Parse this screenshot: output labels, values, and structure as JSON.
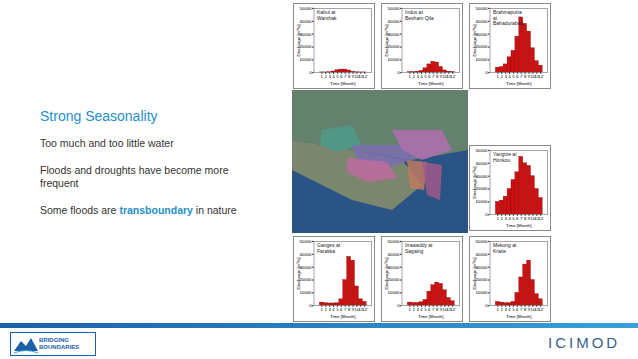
{
  "slide": {
    "title": "Strong Seasonality",
    "bullets": [
      "Too much and too little water",
      "Floods and droughts have become more frequent",
      "Some floods are transboundary in nature"
    ],
    "highlight": "transboundary",
    "logos": [
      "BRIDGING BOUNDARIES",
      "ICIMOD"
    ]
  },
  "chart_data": [
    {
      "type": "bar",
      "title": "Kabul at Warshak",
      "x_label": "Time [Month]",
      "y_label": "Discharge [m³/s]",
      "categories": [
        1,
        2,
        3,
        4,
        5,
        6,
        7,
        8,
        9,
        10,
        11,
        12
      ],
      "values": [
        300,
        300,
        500,
        1000,
        2000,
        2500,
        2500,
        1800,
        800,
        400,
        300,
        300
      ],
      "color": "#d01010",
      "ylim": [
        0,
        50000
      ],
      "yticks": [
        0,
        10000,
        20000,
        30000,
        40000,
        50000
      ]
    },
    {
      "type": "bar",
      "title": "Indus at Besham Qila",
      "x_label": "Time [Month]",
      "y_label": "Discharge [m³/s]",
      "categories": [
        1,
        2,
        3,
        4,
        5,
        6,
        7,
        8,
        9,
        10,
        11,
        12
      ],
      "values": [
        600,
        600,
        900,
        1500,
        3500,
        6500,
        8500,
        8000,
        4500,
        1800,
        900,
        700
      ],
      "color": "#d01010",
      "ylim": [
        0,
        50000
      ],
      "yticks": [
        0,
        10000,
        20000,
        30000,
        40000,
        50000
      ]
    },
    {
      "type": "bar",
      "title": "Brahmaputra at Bahadurabad",
      "x_label": "Time [Month]",
      "y_label": "Discharge [m³/s]",
      "categories": [
        1,
        2,
        3,
        4,
        5,
        6,
        7,
        8,
        9,
        10,
        11,
        12
      ],
      "values": [
        4000,
        4500,
        6500,
        12000,
        17000,
        28000,
        43000,
        38000,
        32000,
        19000,
        9000,
        5500
      ],
      "color": "#d01010",
      "ylim": [
        0,
        50000
      ],
      "yticks": [
        0,
        10000,
        20000,
        30000,
        40000,
        50000
      ]
    },
    {
      "type": "bar",
      "title": "Yangtze at Honkou",
      "x_label": "Time [Month]",
      "y_label": "Discharge [m³/s]",
      "categories": [
        1,
        2,
        3,
        4,
        5,
        6,
        7,
        8,
        9,
        10,
        11,
        12
      ],
      "values": [
        10000,
        11000,
        14000,
        20000,
        27000,
        33000,
        45000,
        40000,
        38000,
        30000,
        20000,
        13000
      ],
      "color": "#d01010",
      "ylim": [
        0,
        50000
      ],
      "yticks": [
        0,
        10000,
        20000,
        30000,
        40000,
        50000
      ]
    },
    {
      "type": "bar",
      "title": "Ganges at Farakka",
      "x_label": "Time [Month]",
      "y_label": "Discharge [m³/s]",
      "categories": [
        1,
        2,
        3,
        4,
        5,
        6,
        7,
        8,
        9,
        10,
        11,
        12
      ],
      "values": [
        2500,
        2000,
        1800,
        1800,
        2000,
        5000,
        20000,
        38000,
        35000,
        15000,
        5000,
        3000
      ],
      "color": "#d01010",
      "ylim": [
        0,
        50000
      ],
      "yticks": [
        0,
        10000,
        20000,
        30000,
        40000,
        50000
      ]
    },
    {
      "type": "bar",
      "title": "Irrawaddy at Sagaing",
      "x_label": "Time [Month]",
      "y_label": "Discharge [m³/s]",
      "categories": [
        1,
        2,
        3,
        4,
        5,
        6,
        7,
        8,
        9,
        10,
        11,
        12
      ],
      "values": [
        2500,
        2200,
        2200,
        2800,
        4500,
        11000,
        16000,
        18000,
        17000,
        12000,
        6000,
        3500
      ],
      "color": "#d01010",
      "ylim": [
        0,
        50000
      ],
      "yticks": [
        0,
        10000,
        20000,
        30000,
        40000,
        50000
      ]
    },
    {
      "type": "bar",
      "title": "Mekong at Kratie",
      "x_label": "Time [Month]",
      "y_label": "Discharge [m³/s]",
      "categories": [
        1,
        2,
        3,
        4,
        5,
        6,
        7,
        8,
        9,
        10,
        11,
        12
      ],
      "values": [
        3000,
        2500,
        2000,
        2000,
        3000,
        10000,
        22000,
        32000,
        35000,
        20000,
        9000,
        5000
      ],
      "color": "#d01010",
      "ylim": [
        0,
        50000
      ],
      "yticks": [
        0,
        10000,
        20000,
        30000,
        40000,
        50000
      ]
    }
  ]
}
